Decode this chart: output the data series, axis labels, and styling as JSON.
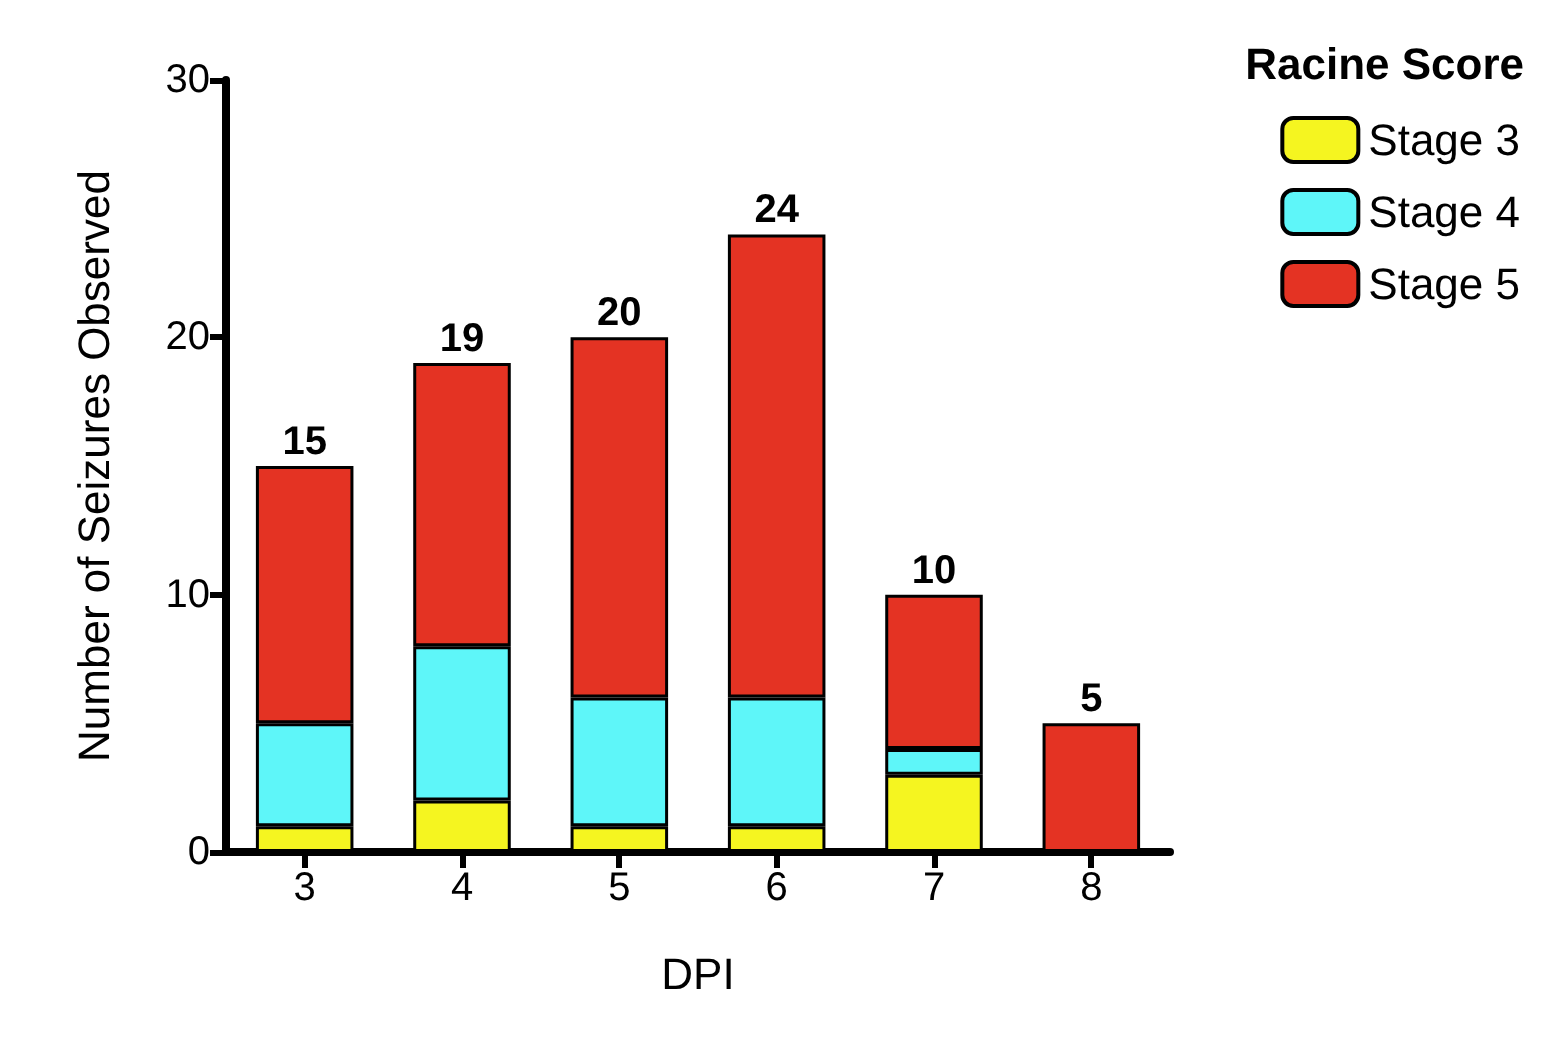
{
  "chart_data": {
    "type": "bar",
    "stacked": true,
    "xlabel": "DPI",
    "ylabel": "Number of Seizures Observed",
    "legend_title": "Racine Score",
    "categories": [
      "3",
      "4",
      "5",
      "6",
      "7",
      "8"
    ],
    "series": [
      {
        "name": "Stage 3",
        "color": "#f5f520",
        "values": [
          1,
          2,
          1,
          1,
          3,
          0
        ]
      },
      {
        "name": "Stage 4",
        "color": "#5ef6f9",
        "values": [
          4,
          6,
          5,
          5,
          1,
          0
        ]
      },
      {
        "name": "Stage 5",
        "color": "#e43323",
        "values": [
          10,
          11,
          14,
          18,
          6,
          5
        ]
      }
    ],
    "totals": [
      "15",
      "19",
      "20",
      "24",
      "10",
      "5"
    ],
    "ylim": [
      0,
      30
    ],
    "yticks": [
      0,
      10,
      20,
      30
    ],
    "grid": false,
    "legend": "top right"
  }
}
